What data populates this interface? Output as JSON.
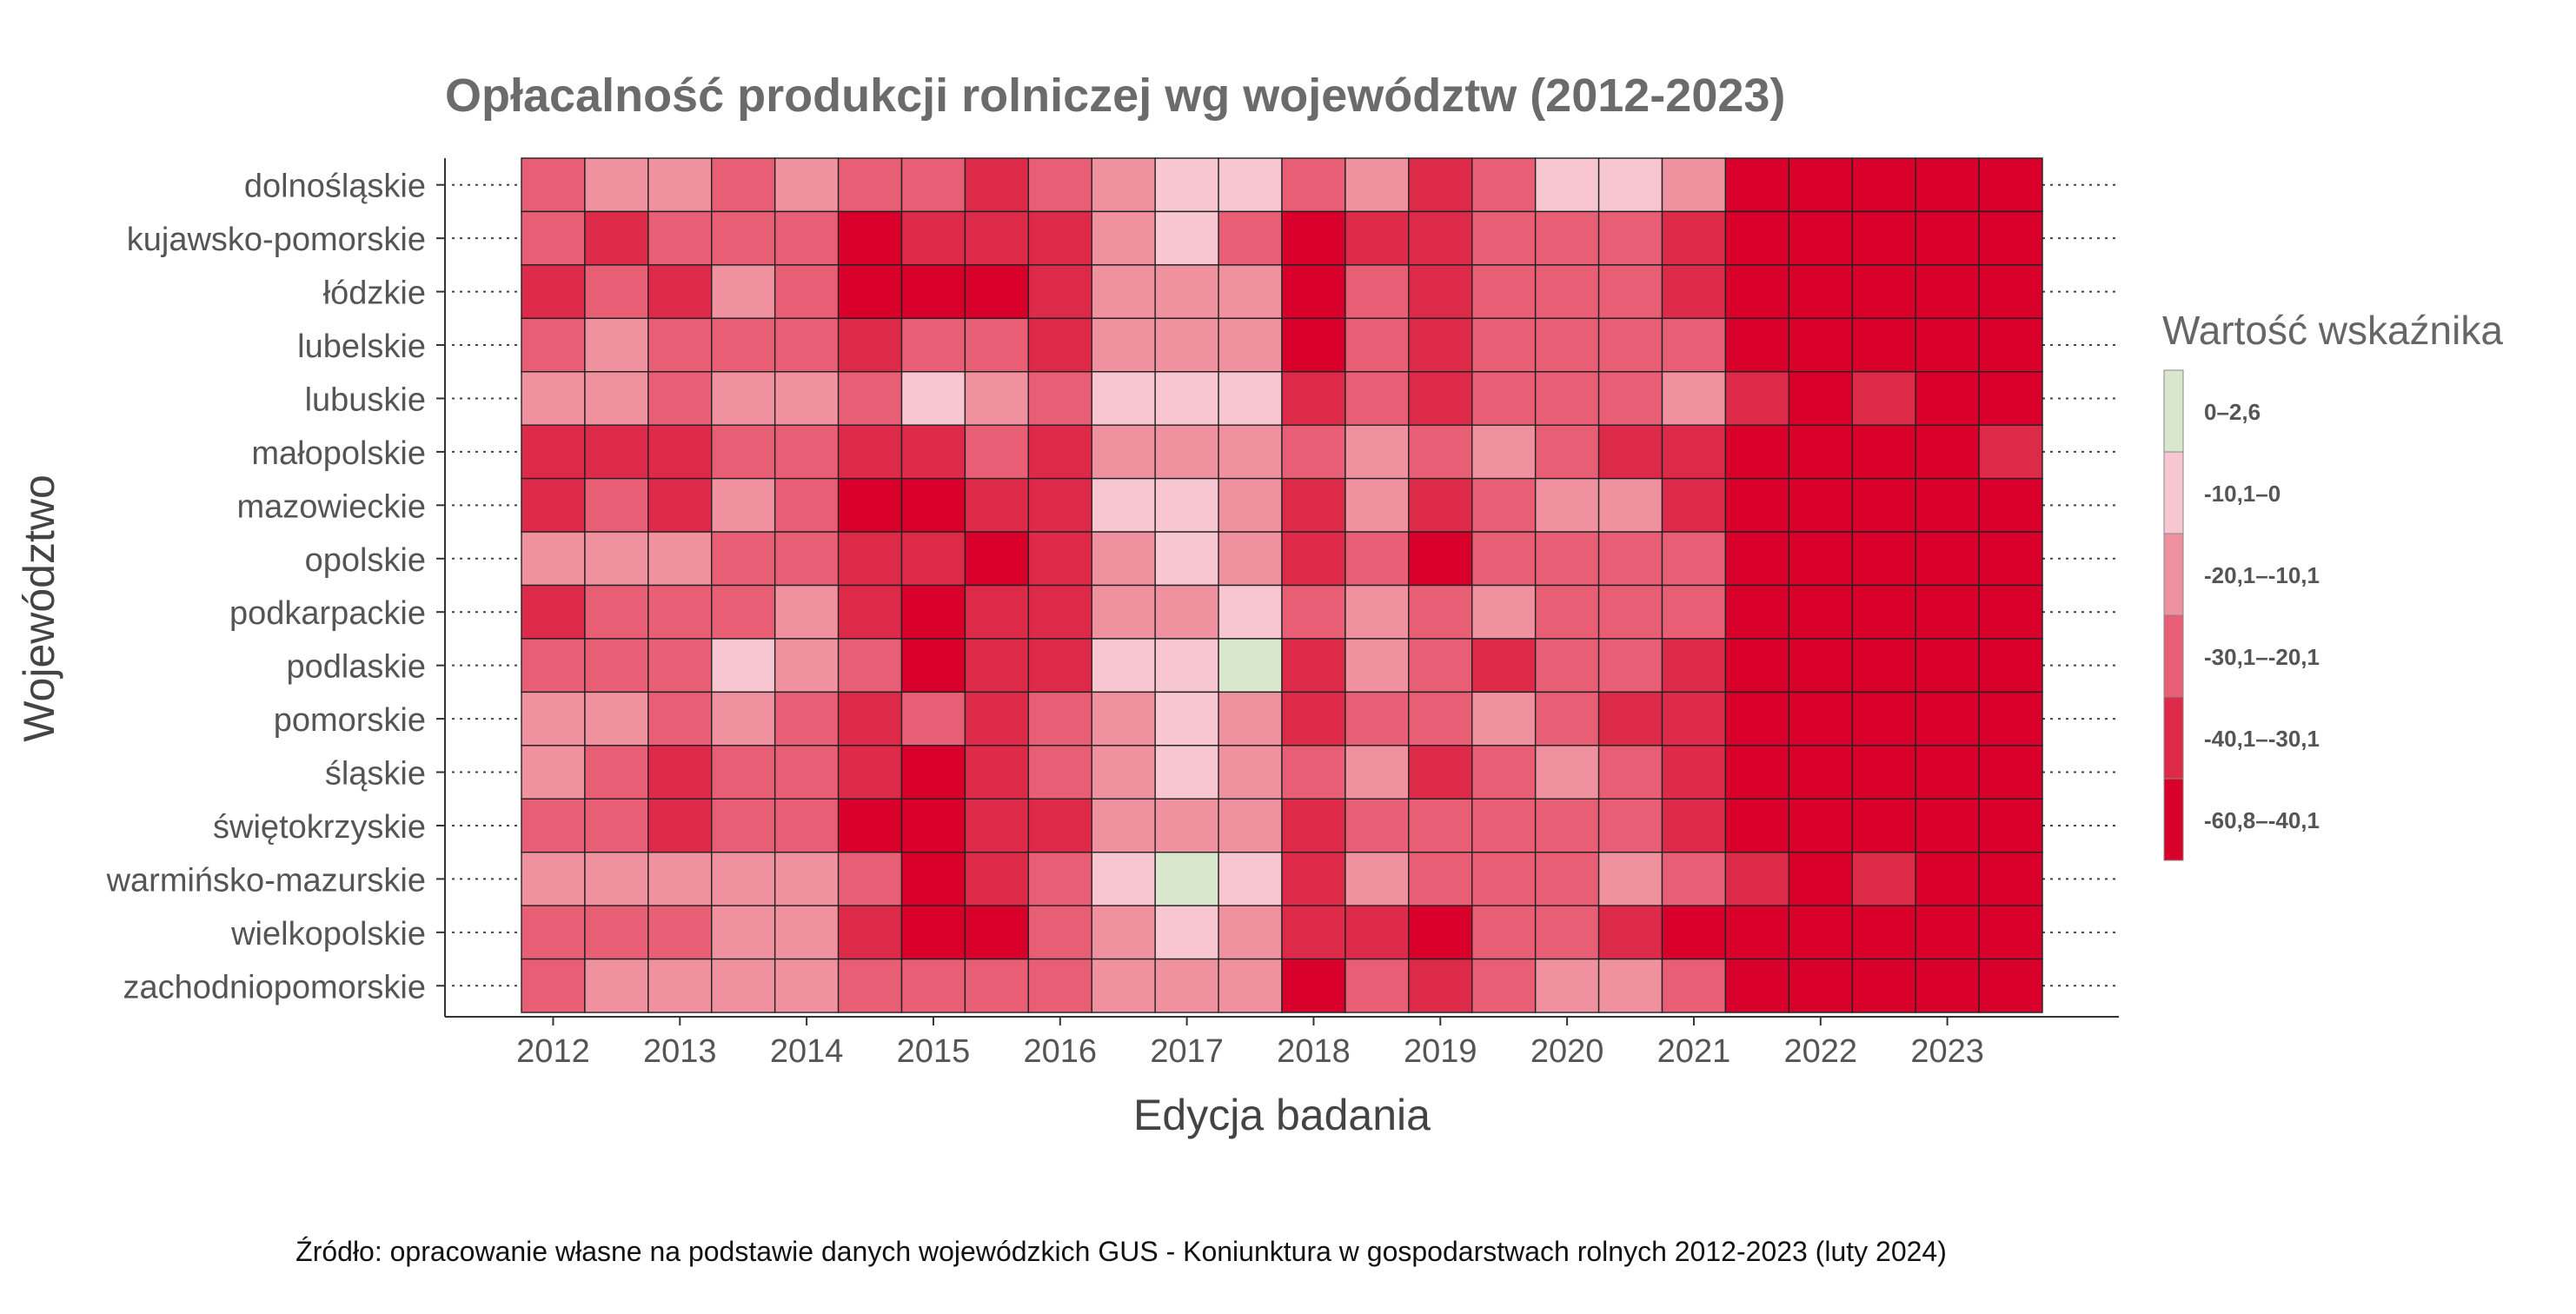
{
  "chart_data": {
    "type": "heatmap",
    "title": "Opłacalność produkcji rolniczej wg województw (2012-2023)",
    "xlabel": "Edycja badania",
    "ylabel": "Województwo",
    "x_tick_labels": [
      "2012",
      "2013",
      "2014",
      "2015",
      "2016",
      "2017",
      "2018",
      "2019",
      "2020",
      "2021",
      "2022",
      "2023"
    ],
    "y_categories": [
      "dolnośląskie",
      "kujawsko-pomorskie",
      "łódzkie",
      "lubelskie",
      "lubuskie",
      "małopolskie",
      "mazowieckie",
      "opolskie",
      "podkarpackie",
      "podlaskie",
      "pomorskie",
      "śląskie",
      "świętokrzyskie",
      "warmińsko-mazurskie",
      "wielkopolskie",
      "zachodniopomorskie"
    ],
    "legend": {
      "title": "Wartość wskaźnika",
      "placement": "right",
      "bins": [
        {
          "label": "0–2,6",
          "color": "#d9e8cc"
        },
        {
          "label": "-10,1–0",
          "color": "#f7c6d0"
        },
        {
          "label": "-20,1–-10,1",
          "color": "#f0919f"
        },
        {
          "label": "-30,1–-20,1",
          "color": "#e85e74"
        },
        {
          "label": "-40,1–-30,1",
          "color": "#dc2a48"
        },
        {
          "label": "-60,8–-40,1",
          "color": "#d8002a"
        }
      ]
    },
    "bin_index_grid": [
      [
        3,
        2,
        2,
        3,
        2,
        3,
        3,
        4,
        3,
        2,
        1,
        1,
        3,
        2,
        4,
        3,
        1,
        1,
        2,
        5,
        5,
        5,
        5,
        5
      ],
      [
        3,
        4,
        3,
        3,
        3,
        5,
        4,
        4,
        4,
        2,
        1,
        3,
        5,
        4,
        4,
        3,
        3,
        3,
        4,
        5,
        5,
        5,
        5,
        5
      ],
      [
        4,
        3,
        4,
        2,
        3,
        5,
        5,
        5,
        4,
        2,
        2,
        2,
        5,
        3,
        4,
        3,
        3,
        3,
        4,
        5,
        5,
        5,
        5,
        5
      ],
      [
        3,
        2,
        3,
        3,
        3,
        4,
        3,
        3,
        4,
        2,
        2,
        2,
        5,
        3,
        4,
        3,
        3,
        3,
        3,
        5,
        5,
        5,
        5,
        5
      ],
      [
        2,
        2,
        3,
        2,
        2,
        3,
        1,
        2,
        3,
        1,
        1,
        1,
        4,
        3,
        4,
        3,
        3,
        3,
        2,
        4,
        5,
        4,
        5,
        5
      ],
      [
        4,
        4,
        4,
        3,
        3,
        4,
        4,
        3,
        4,
        2,
        2,
        2,
        3,
        2,
        3,
        2,
        3,
        4,
        4,
        5,
        5,
        5,
        5,
        4
      ],
      [
        4,
        3,
        4,
        2,
        3,
        5,
        5,
        4,
        4,
        1,
        1,
        2,
        4,
        2,
        4,
        3,
        2,
        2,
        4,
        5,
        5,
        5,
        5,
        5
      ],
      [
        2,
        2,
        2,
        3,
        3,
        4,
        4,
        5,
        4,
        2,
        1,
        2,
        4,
        3,
        5,
        3,
        3,
        3,
        3,
        5,
        5,
        5,
        5,
        5
      ],
      [
        4,
        3,
        3,
        3,
        2,
        4,
        5,
        4,
        4,
        2,
        2,
        1,
        3,
        2,
        3,
        2,
        3,
        3,
        3,
        5,
        5,
        5,
        5,
        5
      ],
      [
        3,
        3,
        3,
        1,
        2,
        3,
        5,
        4,
        4,
        1,
        1,
        0,
        4,
        2,
        3,
        4,
        3,
        3,
        4,
        5,
        5,
        5,
        5,
        5
      ],
      [
        2,
        2,
        3,
        2,
        3,
        4,
        3,
        4,
        3,
        2,
        1,
        2,
        4,
        3,
        3,
        2,
        3,
        4,
        4,
        5,
        5,
        5,
        5,
        5
      ],
      [
        2,
        3,
        4,
        3,
        3,
        4,
        5,
        4,
        3,
        2,
        1,
        2,
        3,
        2,
        4,
        3,
        2,
        3,
        4,
        5,
        5,
        5,
        5,
        5
      ],
      [
        3,
        3,
        4,
        3,
        3,
        5,
        5,
        4,
        4,
        2,
        2,
        2,
        4,
        3,
        3,
        3,
        3,
        3,
        4,
        5,
        5,
        5,
        5,
        5
      ],
      [
        2,
        2,
        2,
        2,
        2,
        3,
        5,
        4,
        3,
        1,
        0,
        1,
        4,
        2,
        3,
        3,
        3,
        2,
        3,
        4,
        5,
        4,
        5,
        5
      ],
      [
        3,
        3,
        3,
        2,
        2,
        4,
        5,
        5,
        3,
        2,
        1,
        2,
        4,
        4,
        5,
        3,
        3,
        4,
        5,
        5,
        5,
        5,
        5,
        5
      ],
      [
        3,
        2,
        2,
        2,
        2,
        3,
        3,
        3,
        3,
        2,
        2,
        2,
        5,
        3,
        4,
        3,
        2,
        2,
        3,
        5,
        5,
        5,
        5,
        5
      ]
    ]
  },
  "source": "Źródło: opracowanie własne na podstawie danych wojewódzkich GUS - Koniunktura w gospodarstwach rolnych 2012-2023 (luty 2024)"
}
